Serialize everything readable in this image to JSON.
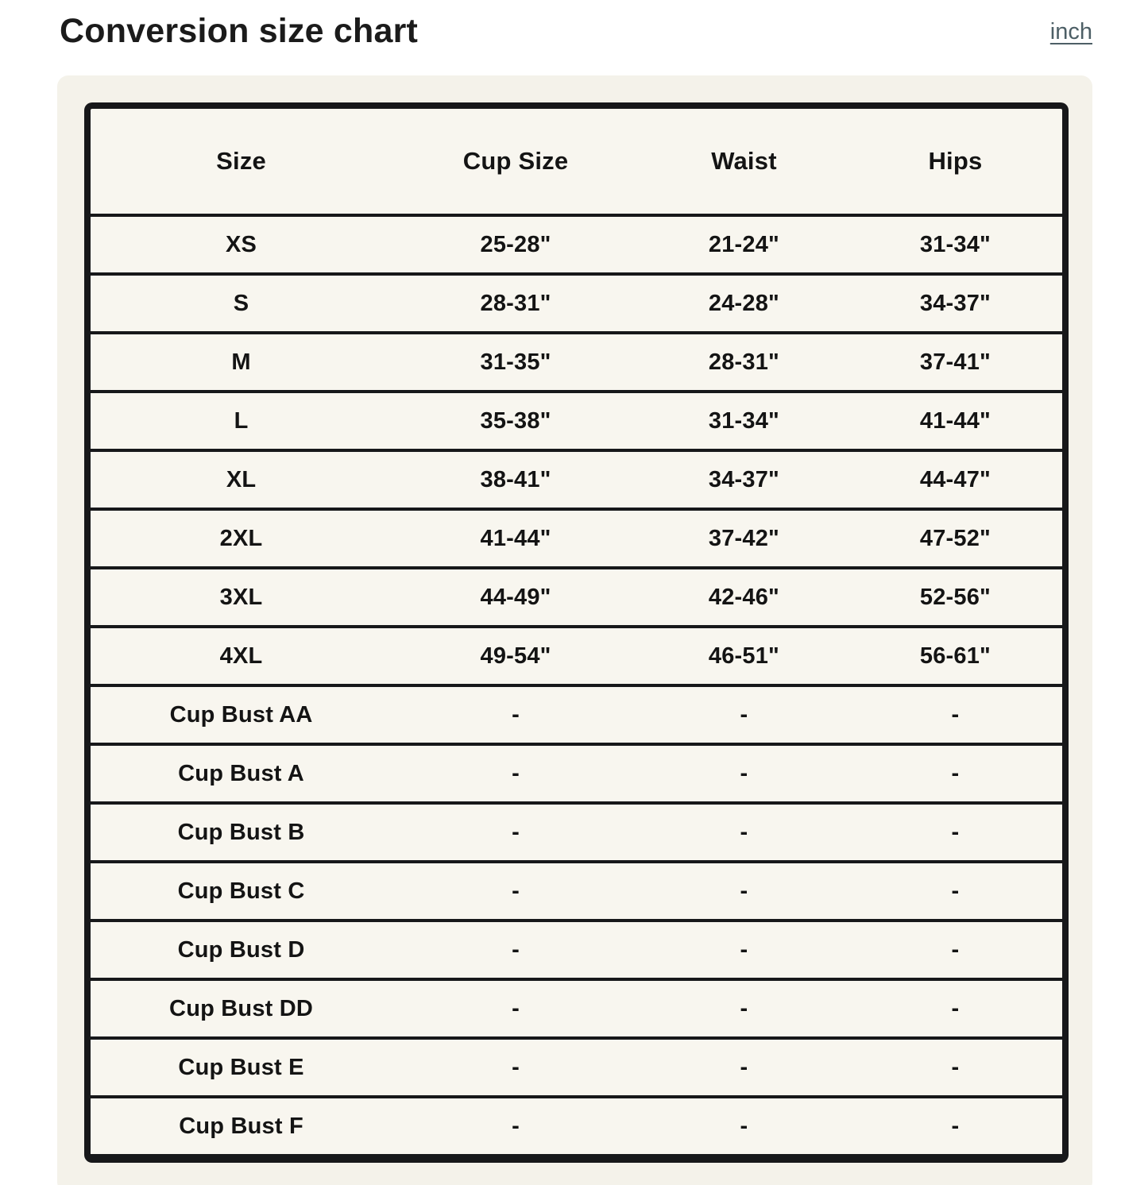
{
  "page": {
    "title": "Conversion size chart",
    "unit_link": "inch"
  },
  "colors": {
    "page_background": "#ffffff",
    "card_background": "#f4f2ea",
    "table_background": "#f8f6ef",
    "table_border": "#17181a",
    "text": "#141414",
    "link": "#4d5f66"
  },
  "chart_data": {
    "type": "table",
    "title": "Conversion size chart",
    "unit": "inch",
    "headers": [
      "Size",
      "Cup Size",
      "Waist",
      "Hips"
    ],
    "rows": [
      {
        "cells": [
          "XS",
          "25-28\"",
          "21-24\"",
          "31-34\""
        ]
      },
      {
        "cells": [
          "S",
          "28-31\"",
          "24-28\"",
          "34-37\""
        ]
      },
      {
        "cells": [
          "M",
          "31-35\"",
          "28-31\"",
          "37-41\""
        ]
      },
      {
        "cells": [
          "L",
          "35-38\"",
          "31-34\"",
          "41-44\""
        ]
      },
      {
        "cells": [
          "XL",
          "38-41\"",
          "34-37\"",
          "44-47\""
        ]
      },
      {
        "cells": [
          "2XL",
          "41-44\"",
          "37-42\"",
          "47-52\""
        ]
      },
      {
        "cells": [
          "3XL",
          "44-49\"",
          "42-46\"",
          "52-56\""
        ]
      },
      {
        "cells": [
          "4XL",
          "49-54\"",
          "46-51\"",
          "56-61\""
        ]
      },
      {
        "cells": [
          "Cup Bust AA",
          "-",
          "-",
          "-"
        ]
      },
      {
        "cells": [
          "Cup Bust A",
          "-",
          "-",
          "-"
        ]
      },
      {
        "cells": [
          "Cup Bust B",
          "-",
          "-",
          "-"
        ]
      },
      {
        "cells": [
          "Cup Bust C",
          "-",
          "-",
          "-"
        ]
      },
      {
        "cells": [
          "Cup Bust D",
          "-",
          "-",
          "-"
        ]
      },
      {
        "cells": [
          "Cup Bust DD",
          "-",
          "-",
          "-"
        ]
      },
      {
        "cells": [
          "Cup Bust E",
          "-",
          "-",
          "-"
        ]
      },
      {
        "cells": [
          "Cup Bust F",
          "-",
          "-",
          "-"
        ]
      }
    ]
  }
}
